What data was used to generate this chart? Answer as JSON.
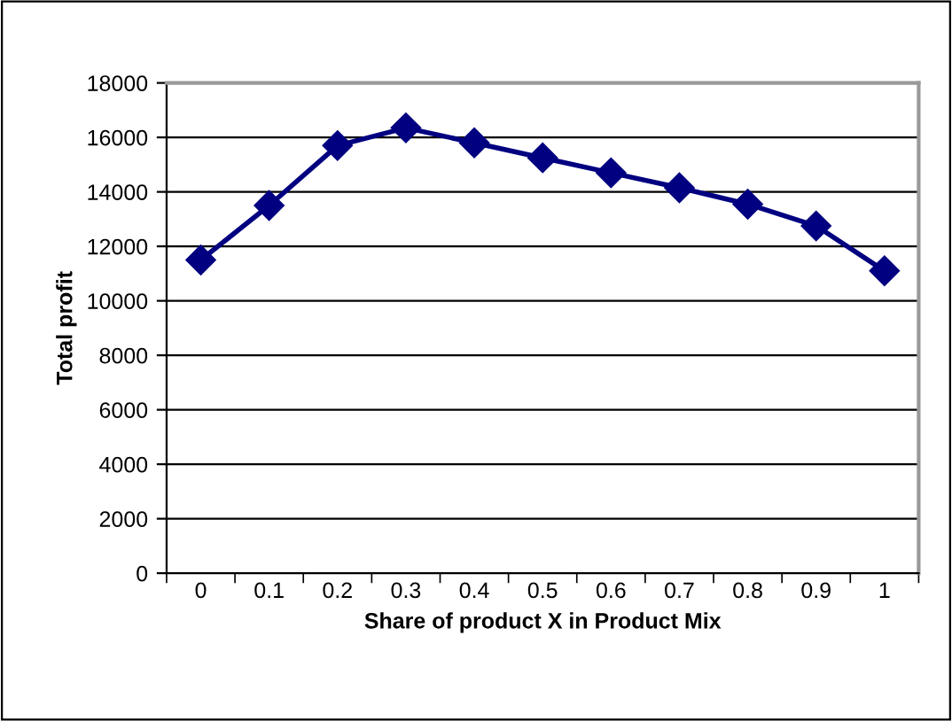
{
  "chart_data": {
    "type": "line",
    "xlabel": "Share of product X in Product Mix",
    "ylabel": "Total profit",
    "categories": [
      "0",
      "0.1",
      "0.2",
      "0.3",
      "0.4",
      "0.5",
      "0.6",
      "0.7",
      "0.8",
      "0.9",
      "1"
    ],
    "series": [
      {
        "color": "#000080",
        "values": [
          11500,
          13500,
          15700,
          16350,
          15800,
          15250,
          14700,
          14150,
          13550,
          12750,
          11100
        ]
      }
    ],
    "ylim": [
      0,
      18000
    ],
    "yticks": [
      0,
      2000,
      4000,
      6000,
      8000,
      10000,
      12000,
      14000,
      16000,
      18000
    ],
    "grid": "y",
    "marker": "diamond",
    "line_style": "solid"
  }
}
